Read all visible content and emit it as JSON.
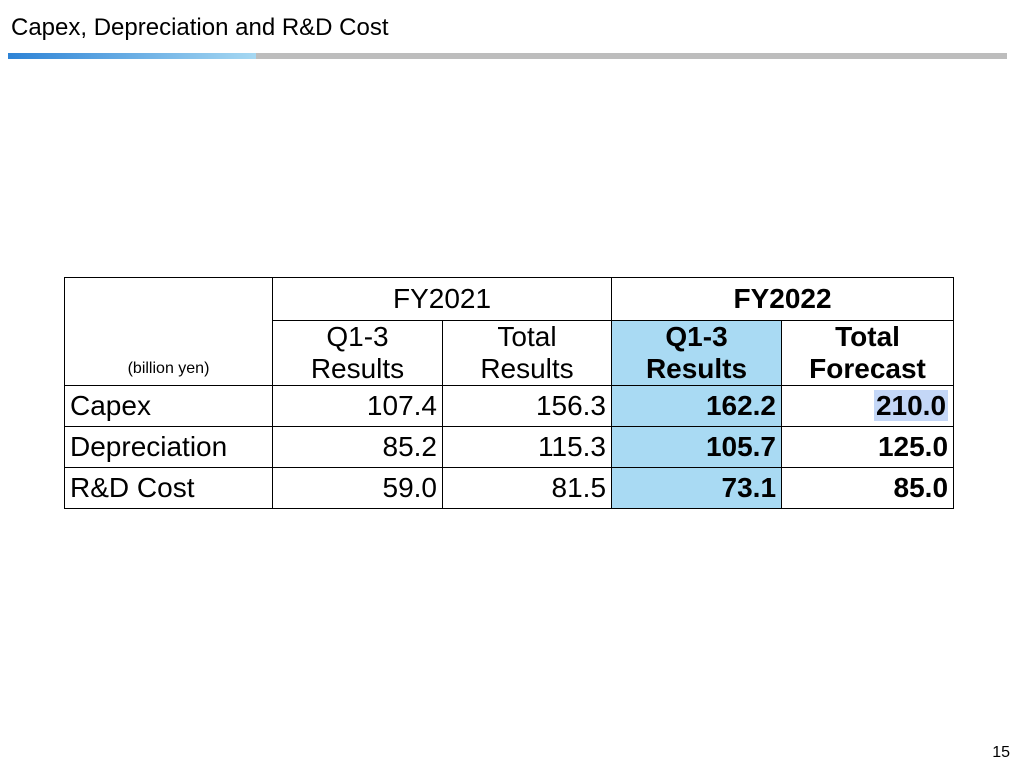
{
  "title": "Capex, Depreciation and R&D Cost",
  "colors": {
    "title_rule_gray": "#bdbdbd",
    "title_rule_accent_start": "#2d83d6",
    "title_rule_accent_end": "#a6d8f2",
    "highlight_column": "#a9daf3",
    "highlight_cell": "#c4d7f7"
  },
  "table": {
    "unit": "(billion yen)",
    "fy2021": "FY2021",
    "fy2022": "FY2022",
    "col_headers": {
      "fy2021_q": [
        "Q1-3",
        "Results"
      ],
      "fy2021_total": [
        "Total",
        "Results"
      ],
      "fy2022_q": [
        "Q1-3",
        "Results"
      ],
      "fy2022_total": [
        "Total",
        "Forecast"
      ]
    },
    "rows": [
      {
        "label": "Capex",
        "fy2021_q": "107.4",
        "fy2021_total": "156.3",
        "fy2022_q": "162.2",
        "fy2022_total": "210.0"
      },
      {
        "label": "Depreciation",
        "fy2021_q": "85.2",
        "fy2021_total": "115.3",
        "fy2022_q": "105.7",
        "fy2022_total": "125.0"
      },
      {
        "label": "R&D Cost",
        "fy2021_q": "59.0",
        "fy2021_total": "81.5",
        "fy2022_q": "73.1",
        "fy2022_total": "85.0"
      }
    ]
  },
  "page_number": "15"
}
